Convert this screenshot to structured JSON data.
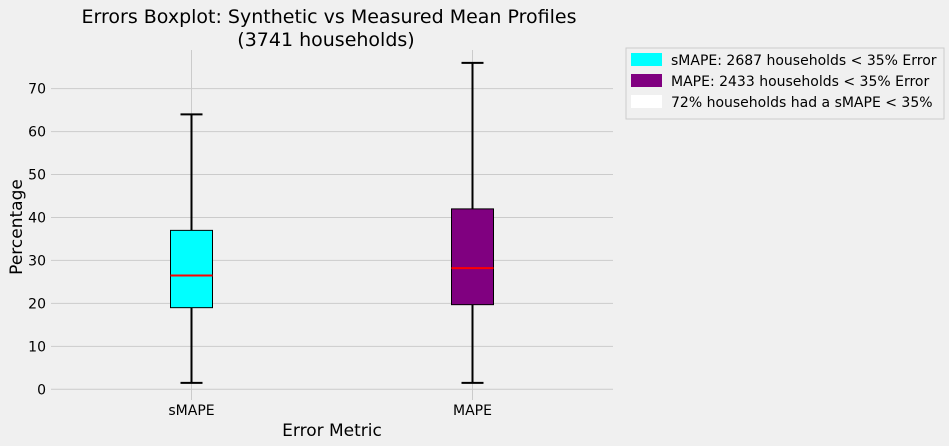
{
  "chart_data": {
    "type": "boxplot",
    "title": "Errors Boxplot: Synthetic vs Measured Mean Profiles",
    "subtitle": "(3741 households)",
    "xlabel": "Error Metric",
    "ylabel": "Percentage",
    "ylim": [
      -2.5,
      79
    ],
    "yticks": [
      0,
      10,
      20,
      30,
      40,
      50,
      60,
      70
    ],
    "grid": true,
    "legend_position": "outside-top-right",
    "categories": [
      "sMAPE",
      "MAPE"
    ],
    "series": [
      {
        "name": "sMAPE",
        "whisker_low": 1.5,
        "q1": 19,
        "median": 26.5,
        "q3": 37,
        "whisker_high": 64,
        "color": "#00ffff"
      },
      {
        "name": "MAPE",
        "whisker_low": 1.5,
        "q1": 19.7,
        "median": 28.2,
        "q3": 42,
        "whisker_high": 76,
        "color": "#800080"
      }
    ],
    "median_color": "#ff0000",
    "legend": [
      {
        "label": "sMAPE: 2687 households < 35% Error",
        "color": "#00ffff"
      },
      {
        "label": "MAPE: 2433 households < 35% Error",
        "color": "#800080"
      },
      {
        "label": "72% households had a sMAPE < 35%",
        "color": "#ffffff"
      }
    ]
  }
}
